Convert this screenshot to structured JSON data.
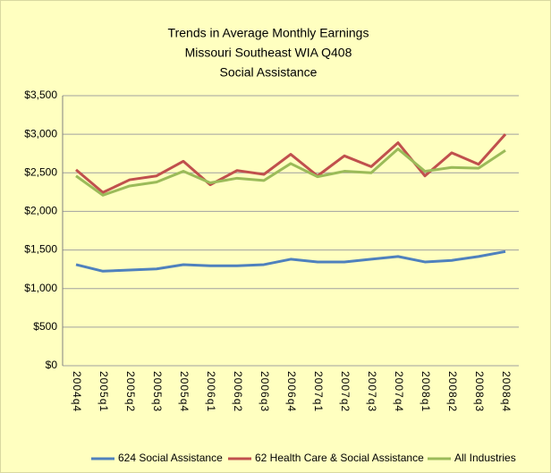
{
  "chart_data": {
    "type": "line",
    "title": [
      "Trends in Average Monthly Earnings",
      "Missouri Southeast WIA Q408",
      "Social Assistance"
    ],
    "categories": [
      "2004q4",
      "2005q1",
      "2005q2",
      "2005q3",
      "2005q4",
      "2006q1",
      "2006q2",
      "2006q3",
      "2006q4",
      "2007q1",
      "2007q2",
      "2007q3",
      "2007q4",
      "2008q1",
      "2008q2",
      "2008q3",
      "2008q4"
    ],
    "series": [
      {
        "name": "624 Social Assistance",
        "color": "#4f81bd",
        "values": [
          1310,
          1225,
          1240,
          1255,
          1310,
          1295,
          1295,
          1310,
          1380,
          1345,
          1345,
          1380,
          1415,
          1345,
          1365,
          1415,
          1480
        ]
      },
      {
        "name": "62 Health Care & Social Assistance",
        "color": "#c0504d",
        "values": [
          2540,
          2245,
          2410,
          2460,
          2650,
          2345,
          2530,
          2480,
          2740,
          2460,
          2720,
          2580,
          2890,
          2460,
          2760,
          2610,
          3000
        ]
      },
      {
        "name": "All Industries",
        "color": "#9bbb59",
        "values": [
          2460,
          2210,
          2330,
          2380,
          2520,
          2370,
          2430,
          2400,
          2620,
          2450,
          2520,
          2500,
          2810,
          2520,
          2570,
          2560,
          2790
        ]
      }
    ],
    "ylim": [
      0,
      3500
    ],
    "yticks": [
      {
        "value": 0,
        "label": "$0"
      },
      {
        "value": 500,
        "label": "$500"
      },
      {
        "value": 1000,
        "label": "$1,000"
      },
      {
        "value": 1500,
        "label": "$1,500"
      },
      {
        "value": 2000,
        "label": "$2,000"
      },
      {
        "value": 2500,
        "label": "$2,500"
      },
      {
        "value": 3000,
        "label": "$3,000"
      },
      {
        "value": 3500,
        "label": "$3,500"
      }
    ],
    "grid": true,
    "legend": "bottom"
  }
}
